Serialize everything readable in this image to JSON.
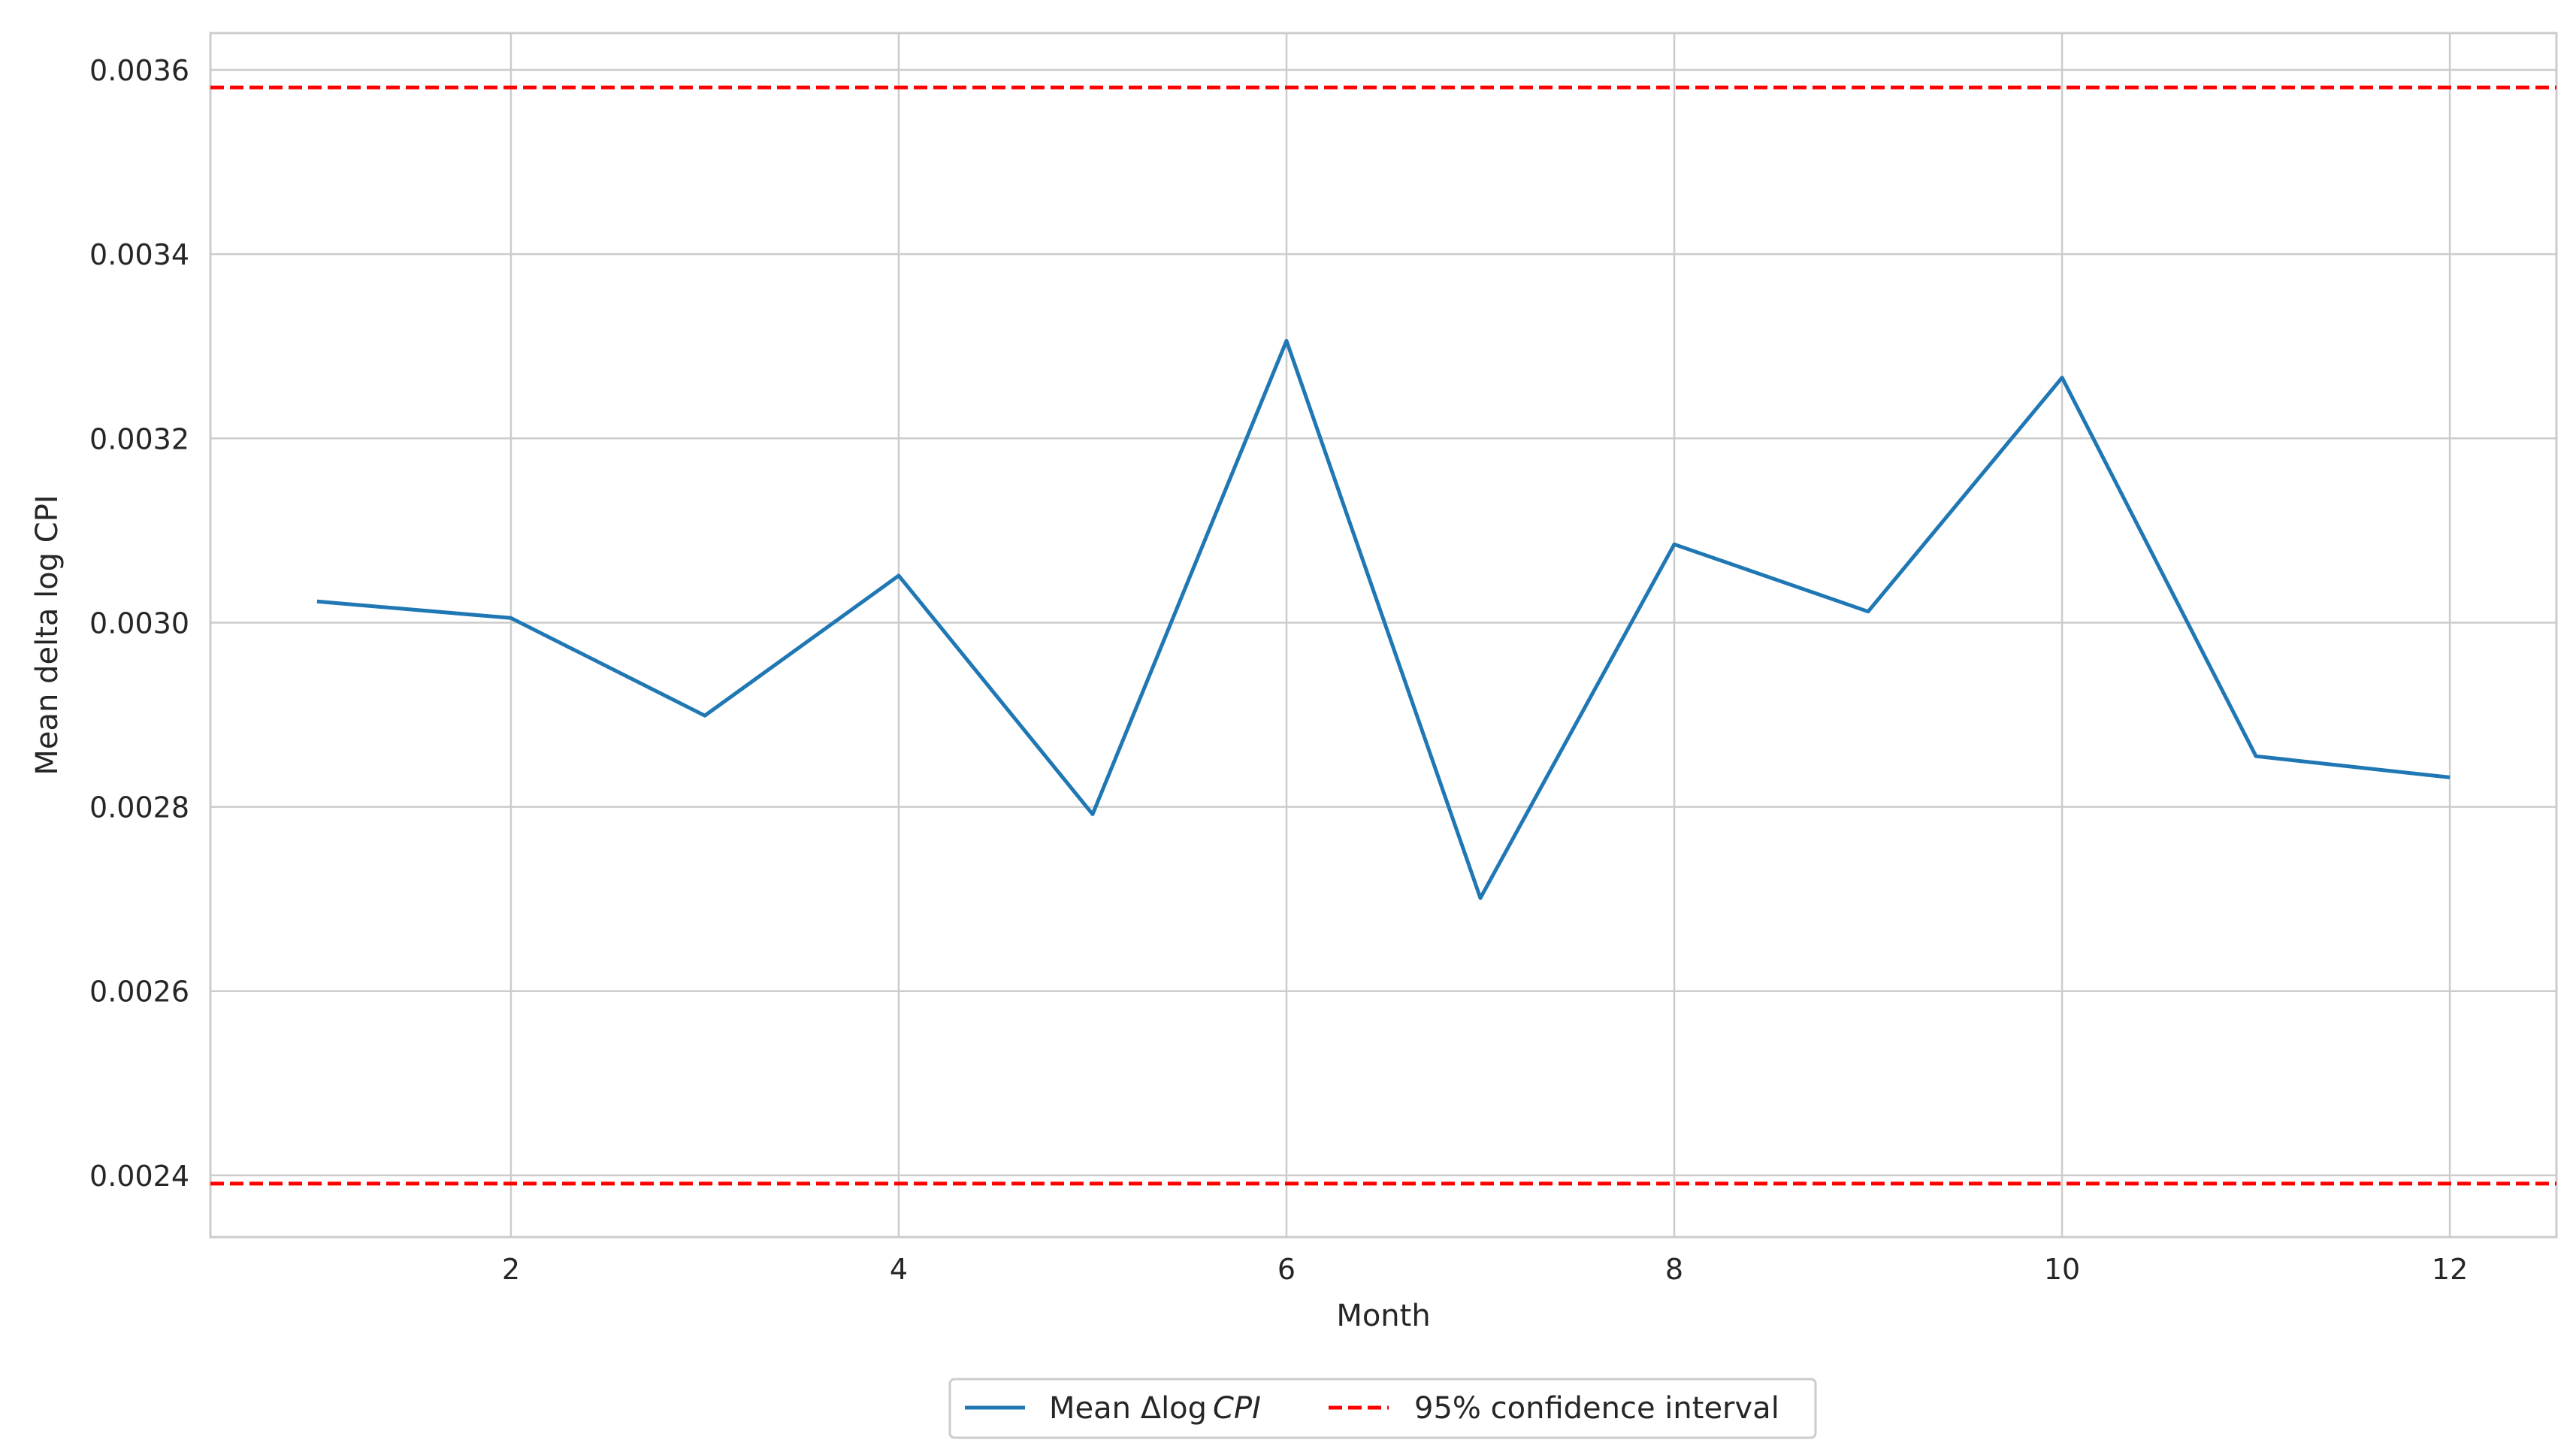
{
  "chart_data": {
    "type": "line",
    "title": "",
    "xlabel": "Month",
    "ylabel": "Mean delta log CPI",
    "xlim": [
      0.45,
      12.55
    ],
    "ylim": [
      0.002333,
      0.00364
    ],
    "xticks": [
      2,
      4,
      6,
      8,
      10,
      12
    ],
    "yticks": [
      0.0024,
      0.0026,
      0.0028,
      0.003,
      0.0032,
      0.0034,
      0.0036
    ],
    "grid": true,
    "legend": "bottom-center, outside plot",
    "series": [
      {
        "name": "Mean Δlog CPI",
        "legend_parts": {
          "prefix": "Mean Δlog",
          "italic": "CPI"
        },
        "color": "#1f77b4",
        "style": "solid",
        "x": [
          1,
          2,
          3,
          4,
          5,
          6,
          7,
          8,
          9,
          10,
          11,
          12
        ],
        "y": [
          0.003023,
          0.003005,
          0.002899,
          0.003051,
          0.002792,
          0.003306,
          0.002701,
          0.003085,
          0.003012,
          0.003266,
          0.002855,
          0.002832
        ]
      }
    ],
    "reference_lines": [
      {
        "name": "95% confidence interval",
        "orientation": "horizontal",
        "y": 0.003581,
        "color": "#ff0000",
        "style": "dashed"
      },
      {
        "name": "95% confidence interval",
        "orientation": "horizontal",
        "y": 0.002391,
        "color": "#ff0000",
        "style": "dashed"
      }
    ],
    "legend_entries": [
      "Mean Δlog CPI",
      "95% confidence interval"
    ]
  }
}
